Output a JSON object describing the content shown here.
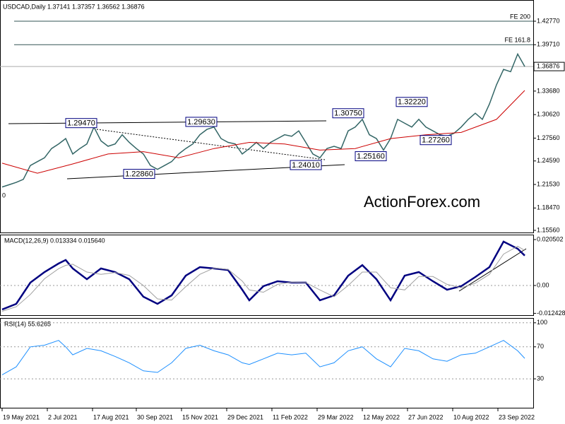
{
  "chart_data": [
    {
      "type": "line",
      "title": "USDCAD,Daily 1.37141 1.37357 1.36562 1.36876",
      "watermark": "ActionForex.com",
      "clipped_label": "0",
      "x": [
        0,
        5,
        10,
        15,
        20,
        25,
        30,
        35,
        40,
        45,
        50,
        55,
        60,
        65,
        70,
        75,
        80,
        85,
        90,
        95,
        100,
        105,
        110,
        115,
        120,
        125,
        130,
        135,
        140,
        145,
        150,
        155,
        160,
        165,
        170,
        175,
        180,
        185,
        190,
        195,
        200,
        205,
        210,
        215,
        220,
        225,
        230,
        235,
        240,
        245,
        250,
        255,
        260,
        265,
        270,
        275,
        280,
        285,
        290,
        295,
        300,
        305,
        310,
        315,
        320,
        325,
        330,
        335,
        340,
        345,
        350,
        355,
        360,
        365,
        370
      ],
      "series": [
        {
          "name": "USDCAD",
          "color": "#336666",
          "values": [
            1.212,
            1.215,
            1.218,
            1.222,
            1.24,
            1.245,
            1.25,
            1.262,
            1.268,
            1.275,
            1.255,
            1.262,
            1.268,
            1.29,
            1.272,
            1.265,
            1.268,
            1.28,
            1.27,
            1.262,
            1.255,
            1.24,
            1.235,
            1.24,
            1.245,
            1.255,
            1.262,
            1.268,
            1.28,
            1.287,
            1.29,
            1.275,
            1.27,
            1.268,
            1.255,
            1.262,
            1.27,
            1.262,
            1.27,
            1.275,
            1.28,
            1.278,
            1.285,
            1.27,
            1.255,
            1.25,
            1.262,
            1.265,
            1.262,
            1.285,
            1.29,
            1.3,
            1.28,
            1.275,
            1.26,
            1.275,
            1.3,
            1.295,
            1.29,
            1.3,
            1.29,
            1.285,
            1.28,
            1.278,
            1.282,
            1.29,
            1.3,
            1.308,
            1.3,
            1.32,
            1.345,
            1.365,
            1.362,
            1.385,
            1.36876
          ]
        },
        {
          "name": "MA",
          "color": "#cc0000",
          "x": [
            0,
            25,
            50,
            75,
            100,
            125,
            150,
            175,
            200,
            225,
            250,
            275,
            300,
            325,
            350,
            370
          ],
          "values": [
            1.243,
            1.23,
            1.242,
            1.255,
            1.258,
            1.25,
            1.262,
            1.27,
            1.268,
            1.26,
            1.262,
            1.275,
            1.28,
            1.283,
            1.3,
            1.3376
          ]
        }
      ],
      "hlines": [
        {
          "label": "FE 200",
          "value": 1.4277
        },
        {
          "label": "FE 161.8",
          "value": 1.3971
        }
      ],
      "last_price": {
        "value": 1.36876,
        "label": "1.36876"
      },
      "annotations": [
        {
          "label": "1.29470",
          "value": 1.2947,
          "x": 67
        },
        {
          "label": "1.29630",
          "value": 1.2963,
          "x": 152
        },
        {
          "label": "1.22860",
          "value": 1.2286,
          "x": 108
        },
        {
          "label": "1.24010",
          "value": 1.2401,
          "x": 226
        },
        {
          "label": "1.30750",
          "value": 1.3075,
          "x": 256
        },
        {
          "label": "1.25160",
          "value": 1.2516,
          "x": 272
        },
        {
          "label": "1.32220",
          "value": 1.3222,
          "x": 301
        },
        {
          "label": "1.27260",
          "value": 1.2726,
          "x": 318
        }
      ],
      "xlim": [
        -1.5,
        376
      ],
      "ylim": [
        1.1519,
        1.4553
      ],
      "yticks": [
        {
          "value": 1.4277,
          "label": "1.42770"
        },
        {
          "value": 1.3971,
          "label": "1.39710"
        },
        {
          "value": 1.3368,
          "label": "1.33680"
        },
        {
          "value": 1.3062,
          "label": "1.30620"
        },
        {
          "value": 1.2756,
          "label": "1.27560"
        },
        {
          "value": 1.2459,
          "label": "1.24590"
        },
        {
          "value": 1.2153,
          "label": "1.21530"
        },
        {
          "value": 1.1847,
          "label": "1.18470"
        },
        {
          "value": 1.1556,
          "label": "1.15560"
        }
      ]
    },
    {
      "type": "line",
      "title": "MACD(12,26,9) 0.013334 0.015640",
      "x": [
        0,
        10,
        20,
        30,
        40,
        45,
        50,
        60,
        70,
        80,
        90,
        100,
        110,
        120,
        130,
        140,
        150,
        160,
        170,
        175,
        185,
        195,
        205,
        215,
        225,
        235,
        245,
        255,
        265,
        275,
        285,
        295,
        305,
        315,
        325,
        335,
        345,
        355,
        365,
        370
      ],
      "series": [
        {
          "name": "MACD",
          "color": "#000080",
          "values": [
            -0.0107,
            -0.0082,
            0.0013,
            0.006,
            0.0098,
            0.0114,
            0.0076,
            0.0028,
            0.0076,
            0.006,
            0.0028,
            -0.005,
            -0.0082,
            -0.0044,
            0.0044,
            0.0082,
            0.0076,
            0.0069,
            -0.0019,
            -0.0066,
            -0.0003,
            0.0019,
            0.0013,
            0.0013,
            -0.0066,
            -0.0044,
            0.0044,
            0.0091,
            0.0028,
            -0.0066,
            0.0044,
            0.006,
            0.0019,
            -0.0019,
            -0.0003,
            0.0038,
            0.0082,
            0.0196,
            0.0164,
            0.013334
          ]
        },
        {
          "name": "Signal",
          "color": "#a0a0a0",
          "values": [
            -0.0115,
            -0.0095,
            -0.004,
            0.003,
            0.0075,
            0.009,
            0.0095,
            0.006,
            0.005,
            0.0058,
            0.0045,
            0.0,
            -0.006,
            -0.0065,
            -0.0005,
            0.005,
            0.0078,
            0.0072,
            0.002,
            -0.002,
            -0.003,
            0.0005,
            0.0015,
            0.0013,
            -0.002,
            -0.005,
            0.0,
            0.006,
            0.006,
            -0.001,
            -0.002,
            0.004,
            0.004,
            0.0005,
            -0.001,
            0.001,
            0.005,
            0.014,
            0.0175,
            0.01564
          ]
        }
      ],
      "xlim": [
        -1.5,
        376
      ],
      "ylim": [
        -0.01356,
        0.02271
      ],
      "yticks": [
        {
          "value": 0.020502,
          "label": "0.020502"
        },
        {
          "value": 0,
          "label": "0.00"
        },
        {
          "value": -0.012428,
          "label": "-0.012428"
        }
      ]
    },
    {
      "type": "line",
      "title": "RSI(14) 55.6265",
      "x": [
        0,
        10,
        20,
        30,
        40,
        45,
        50,
        60,
        70,
        80,
        90,
        100,
        110,
        120,
        130,
        140,
        150,
        160,
        170,
        175,
        185,
        195,
        205,
        215,
        225,
        235,
        245,
        255,
        265,
        275,
        285,
        295,
        305,
        315,
        325,
        335,
        345,
        355,
        365,
        370
      ],
      "series": [
        {
          "name": "RSI",
          "color": "#1e90ff",
          "values": [
            35,
            45,
            70,
            72,
            78,
            70,
            60,
            68,
            65,
            58,
            50,
            40,
            38,
            50,
            68,
            72,
            65,
            60,
            50,
            48,
            55,
            62,
            60,
            62,
            45,
            50,
            65,
            70,
            55,
            45,
            68,
            65,
            55,
            52,
            60,
            62,
            70,
            78,
            65,
            55.6265
          ]
        }
      ],
      "xlim": [
        -1.5,
        376
      ],
      "ylim": [
        -7,
        106
      ],
      "yticks": [
        100,
        70,
        30
      ],
      "xticks": [
        {
          "value": 0,
          "label": "19 May 2021"
        },
        {
          "value": 32,
          "label": "2 Jul 2021"
        },
        {
          "value": 64,
          "label": "17 Aug 2021"
        },
        {
          "value": 95,
          "label": "30 Sep 2021"
        },
        {
          "value": 127,
          "label": "15 Nov 2021"
        },
        {
          "value": 159,
          "label": "29 Dec 2021"
        },
        {
          "value": 191,
          "label": "11 Feb 2022"
        },
        {
          "value": 223,
          "label": "29 Mar 2022"
        },
        {
          "value": 255,
          "label": "12 May 2022"
        },
        {
          "value": 287,
          "label": "27 Jun 2022"
        },
        {
          "value": 319,
          "label": "10 Aug 2022"
        },
        {
          "value": 351,
          "label": "23 Sep 2022"
        }
      ]
    }
  ]
}
